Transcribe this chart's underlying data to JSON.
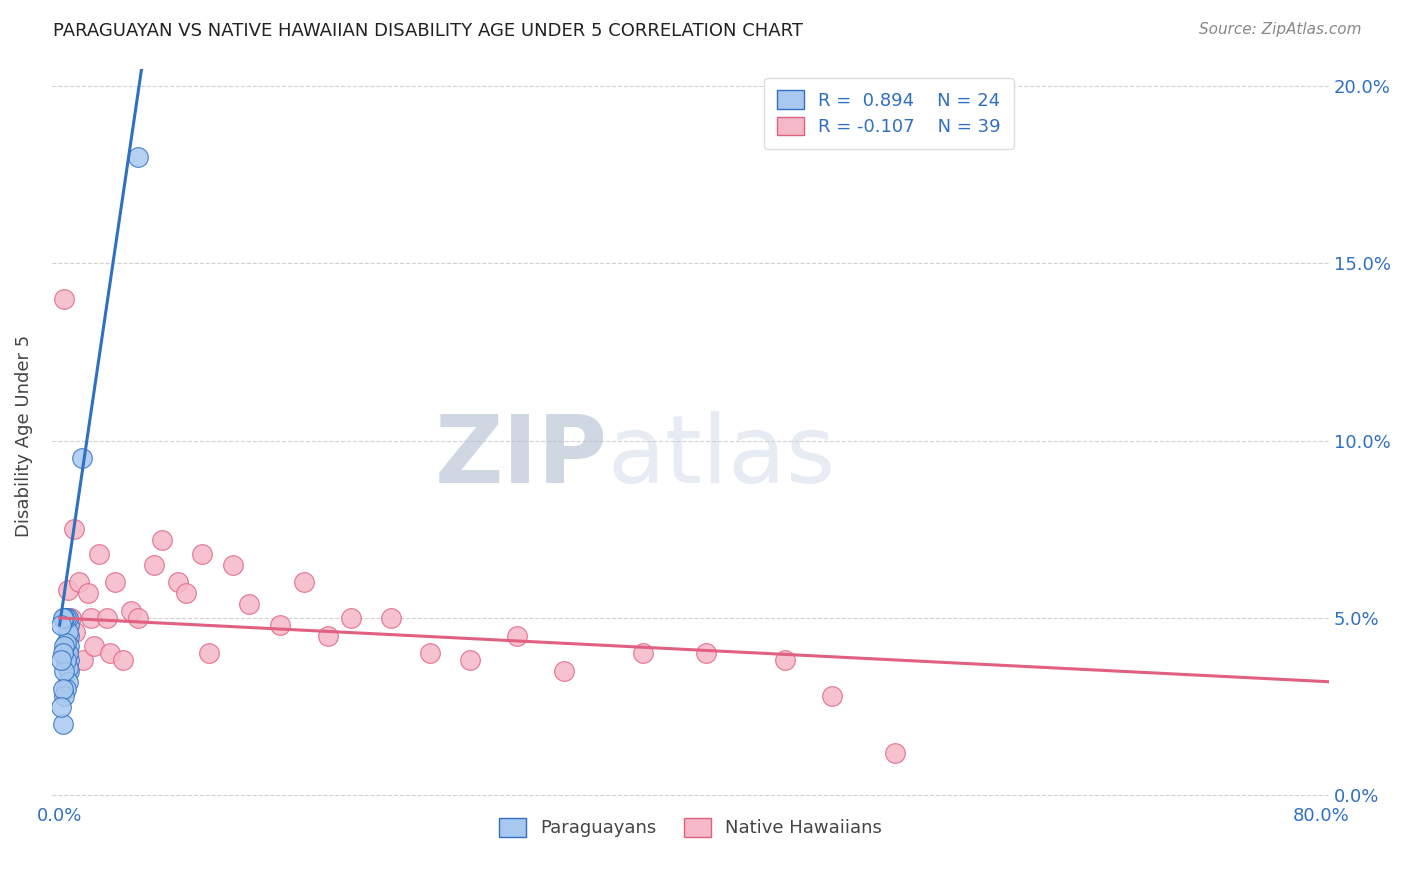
{
  "title": "PARAGUAYAN VS NATIVE HAWAIIAN DISABILITY AGE UNDER 5 CORRELATION CHART",
  "source": "Source: ZipAtlas.com",
  "ylabel": "Disability Age Under 5",
  "xlabel": "",
  "xlim": [
    -0.005,
    0.805
  ],
  "ylim": [
    -0.002,
    0.205
  ],
  "x_ticks": [
    0.0,
    0.2,
    0.4,
    0.6,
    0.8
  ],
  "x_tick_labels": [
    "0.0%",
    "",
    "",
    "",
    "80.0%"
  ],
  "y_ticks_right": [
    0.0,
    0.05,
    0.1,
    0.15,
    0.2
  ],
  "y_tick_labels_right": [
    "0.0%",
    "5.0%",
    "10.0%",
    "15.0%",
    "20.0%"
  ],
  "blue_color": "#a8c8f0",
  "pink_color": "#f5b8c8",
  "blue_line_color": "#3070c0",
  "pink_line_color": "#e06080",
  "watermark_zip": "ZIP",
  "watermark_atlas": "atlas",
  "paraguayan_x": [
    0.006,
    0.006,
    0.006,
    0.006,
    0.006,
    0.005,
    0.005,
    0.005,
    0.005,
    0.005,
    0.004,
    0.004,
    0.004,
    0.004,
    0.003,
    0.003,
    0.003,
    0.003,
    0.002,
    0.002,
    0.002,
    0.002,
    0.001,
    0.001,
    0.001,
    0.014,
    0.05
  ],
  "paraguayan_y": [
    0.048,
    0.045,
    0.042,
    0.038,
    0.035,
    0.05,
    0.046,
    0.04,
    0.036,
    0.032,
    0.05,
    0.043,
    0.038,
    0.03,
    0.05,
    0.042,
    0.035,
    0.028,
    0.05,
    0.04,
    0.03,
    0.02,
    0.048,
    0.038,
    0.025,
    0.095,
    0.18
  ],
  "native_hawaiian_x": [
    0.003,
    0.005,
    0.007,
    0.009,
    0.01,
    0.012,
    0.015,
    0.018,
    0.02,
    0.022,
    0.025,
    0.03,
    0.032,
    0.035,
    0.04,
    0.045,
    0.05,
    0.06,
    0.065,
    0.075,
    0.08,
    0.09,
    0.095,
    0.11,
    0.12,
    0.14,
    0.155,
    0.17,
    0.185,
    0.21,
    0.235,
    0.26,
    0.29,
    0.32,
    0.37,
    0.41,
    0.46,
    0.49,
    0.53
  ],
  "native_hawaiian_y": [
    0.14,
    0.058,
    0.05,
    0.075,
    0.046,
    0.06,
    0.038,
    0.057,
    0.05,
    0.042,
    0.068,
    0.05,
    0.04,
    0.06,
    0.038,
    0.052,
    0.05,
    0.065,
    0.072,
    0.06,
    0.057,
    0.068,
    0.04,
    0.065,
    0.054,
    0.048,
    0.06,
    0.045,
    0.05,
    0.05,
    0.04,
    0.038,
    0.045,
    0.035,
    0.04,
    0.04,
    0.038,
    0.028,
    0.012
  ],
  "blue_trend_x0": 0.0,
  "blue_trend_y0": 0.048,
  "blue_trend_x1": 0.052,
  "blue_trend_y1": 0.205,
  "pink_trend_x0": 0.0,
  "pink_trend_y0": 0.05,
  "pink_trend_x1": 0.805,
  "pink_trend_y1": 0.032
}
